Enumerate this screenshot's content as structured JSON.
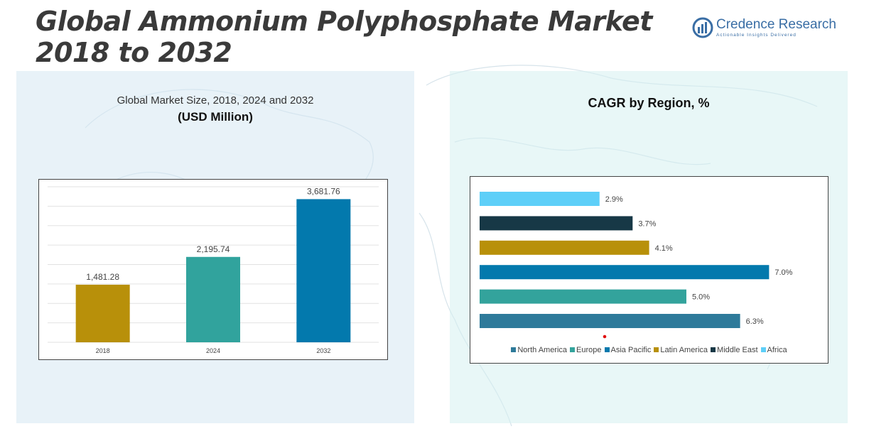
{
  "title": {
    "line1": "Global Ammonium Polyphosphate Market",
    "line2": "2018 to 2032"
  },
  "logo": {
    "name": "Credence Research",
    "tagline": "Actionable Insights Delivered",
    "color": "#3a6ea5"
  },
  "left_panel": {
    "title": "Global Market Size, 2018, 2024 and 2032",
    "subtitle": "(USD Million)"
  },
  "right_panel": {
    "title": "CAGR by Region, %"
  },
  "chart_data": [
    {
      "type": "bar",
      "orientation": "vertical",
      "categories": [
        "2018",
        "2024",
        "2032"
      ],
      "values": [
        1481.28,
        2195.74,
        3681.76
      ],
      "labels": [
        "1,481.28",
        "2,195.74",
        "3,681.76"
      ],
      "colors": [
        "#b8900a",
        "#31a39d",
        "#0379ad"
      ],
      "ylim": [
        0,
        4000
      ],
      "grid": true
    },
    {
      "type": "bar",
      "orientation": "horizontal",
      "categories": [
        "North America",
        "Europe",
        "Asia Pacific",
        "Latin America",
        "Middle East",
        "Africa"
      ],
      "values": [
        6.3,
        5.0,
        7.0,
        4.1,
        3.7,
        2.9
      ],
      "labels": [
        "6.3%",
        "5.0%",
        "7.0%",
        "4.1%",
        "3.7%",
        "2.9%"
      ],
      "colors": [
        "#2e7a9a",
        "#33a39c",
        "#0379ad",
        "#b8900a",
        "#173846",
        "#5ecff8"
      ],
      "xlim": [
        0,
        7.2
      ],
      "legend_position": "bottom"
    }
  ]
}
